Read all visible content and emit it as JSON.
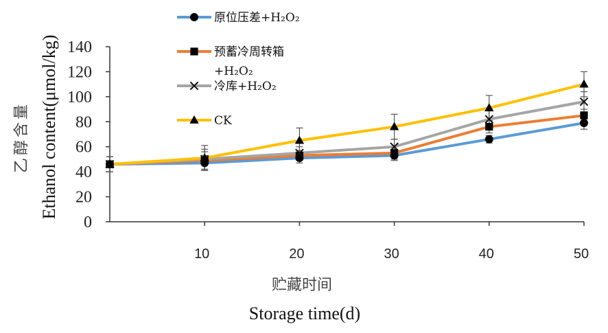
{
  "chart_data": {
    "type": "line",
    "title": "",
    "ylabel_cn": "乙醇含量",
    "ylabel_en": "Ethanol content(μmol/kg)",
    "xlabel_cn": "贮藏时间",
    "xlabel_en": "Storage time(d)",
    "x": [
      0,
      10,
      20,
      30,
      40,
      50
    ],
    "x_tick_labels": [
      "10",
      "20",
      "30",
      "40",
      "50"
    ],
    "y_tick_labels": [
      "0",
      "20",
      "40",
      "60",
      "80",
      "100",
      "120",
      "140"
    ],
    "ylim": [
      0,
      140
    ],
    "xlim": [
      0,
      50
    ],
    "grid": false,
    "legend_position": "top-center",
    "series": [
      {
        "name": "原位压差+H₂O₂",
        "color": "#5B9BD5",
        "marker": "circle",
        "values": [
          46,
          47,
          51,
          53,
          66,
          79
        ],
        "errors": [
          6,
          6,
          4,
          4,
          3,
          5
        ]
      },
      {
        "name": "预蓄冷周转箱+H₂O₂",
        "color": "#ED7D31",
        "marker": "square",
        "values": [
          46,
          49,
          53,
          55,
          76,
          85
        ],
        "errors": [
          6,
          7,
          4,
          5,
          5,
          5
        ]
      },
      {
        "name": "冷库+H₂O₂",
        "color": "#A5A5A5",
        "marker": "x",
        "values": [
          46,
          50,
          55,
          60,
          82,
          96
        ],
        "errors": [
          6,
          8,
          5,
          6,
          8,
          8
        ]
      },
      {
        "name": "CK",
        "color": "#FFC000",
        "marker": "triangle",
        "values": [
          46,
          51,
          65,
          76,
          91,
          110
        ],
        "errors": [
          6,
          10,
          10,
          10,
          10,
          10
        ]
      }
    ]
  }
}
